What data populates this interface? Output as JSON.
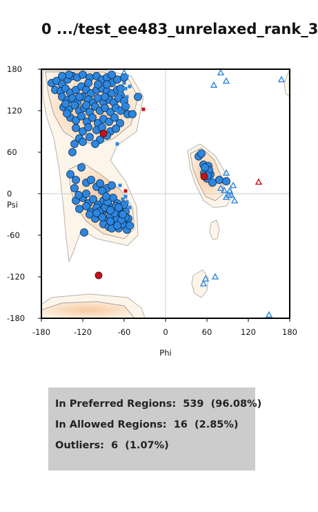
{
  "title": "0 .../test_ee483_unrelaxed_rank_3",
  "stats": {
    "preferred": "In Preferred Regions:  539  (96.08%)",
    "allowed": "In Allowed Regions:  16  (2.85%)",
    "outliers": "Outliers:  6  (1.07%)"
  },
  "chart_data": {
    "type": "scatter",
    "title": "0 .../test_ee483_unrelaxed_rank_3",
    "xlabel": "Phi",
    "ylabel": "Psi",
    "xlim": [
      -180,
      180
    ],
    "ylim": [
      -180,
      180
    ],
    "xticks": [
      "-180",
      "-120",
      "-60",
      "0",
      "60",
      "120",
      "180"
    ],
    "yticks": [
      "180",
      "120",
      "60",
      "0",
      "-60",
      "-120",
      "-180"
    ],
    "colors": {
      "general": "#2e86de",
      "outlier": "#c0141c"
    },
    "series": [
      {
        "marker": "circle",
        "points": [
          [
            -165,
            160
          ],
          [
            -158,
            163
          ],
          [
            -150,
            158
          ],
          [
            -142,
            165
          ],
          [
            -135,
            170
          ],
          [
            -128,
            168
          ],
          [
            -120,
            172
          ],
          [
            -110,
            168
          ],
          [
            -100,
            170
          ],
          [
            -92,
            165
          ],
          [
            -85,
            168
          ],
          [
            -78,
            160
          ],
          [
            -70,
            165
          ],
          [
            -160,
            150
          ],
          [
            -152,
            148
          ],
          [
            -145,
            152
          ],
          [
            -138,
            146
          ],
          [
            -130,
            150
          ],
          [
            -122,
            155
          ],
          [
            -115,
            150
          ],
          [
            -108,
            145
          ],
          [
            -100,
            150
          ],
          [
            -92,
            152
          ],
          [
            -85,
            148
          ],
          [
            -78,
            145
          ],
          [
            -70,
            150
          ],
          [
            -65,
            142
          ],
          [
            -150,
            140
          ],
          [
            -142,
            135
          ],
          [
            -135,
            138
          ],
          [
            -128,
            132
          ],
          [
            -120,
            140
          ],
          [
            -112,
            136
          ],
          [
            -105,
            132
          ],
          [
            -98,
            138
          ],
          [
            -90,
            132
          ],
          [
            -82,
            136
          ],
          [
            -75,
            132
          ],
          [
            -68,
            138
          ],
          [
            -60,
            134
          ],
          [
            -148,
            125
          ],
          [
            -140,
            122
          ],
          [
            -132,
            128
          ],
          [
            -125,
            120
          ],
          [
            -118,
            124
          ],
          [
            -110,
            118
          ],
          [
            -102,
            126
          ],
          [
            -95,
            120
          ],
          [
            -88,
            124
          ],
          [
            -80,
            118
          ],
          [
            -72,
            124
          ],
          [
            -65,
            120
          ],
          [
            -58,
            126
          ],
          [
            -138,
            110
          ],
          [
            -130,
            106
          ],
          [
            -122,
            112
          ],
          [
            -114,
            104
          ],
          [
            -106,
            110
          ],
          [
            -98,
            102
          ],
          [
            -90,
            108
          ],
          [
            -82,
            104
          ],
          [
            -74,
            110
          ],
          [
            -66,
            102
          ],
          [
            -130,
            95
          ],
          [
            -120,
            90
          ],
          [
            -112,
            96
          ],
          [
            -100,
            92
          ],
          [
            -92,
            96
          ],
          [
            -80,
            90
          ],
          [
            -72,
            94
          ],
          [
            -125,
            80
          ],
          [
            -110,
            82
          ],
          [
            -95,
            78
          ],
          [
            -85,
            84
          ],
          [
            -120,
            75
          ],
          [
            -102,
            72
          ],
          [
            -132,
            72
          ],
          [
            -135,
            60
          ],
          [
            -140,
            172
          ],
          [
            -143,
            116
          ],
          [
            -40,
            140
          ],
          [
            -115,
            128
          ],
          [
            -85,
            158
          ],
          [
            -55,
            115
          ],
          [
            -150,
            170
          ],
          [
            -98,
            158
          ],
          [
            -78,
            172
          ],
          [
            -60,
            168
          ],
          [
            -48,
            115
          ],
          [
            -145,
            130
          ],
          [
            -112,
            160
          ],
          [
            -88,
            140
          ],
          [
            -65,
            152
          ],
          [
            -125,
            140
          ],
          [
            -138,
            28
          ],
          [
            -122,
            38
          ],
          [
            -130,
            20
          ],
          [
            -132,
            8
          ],
          [
            -115,
            16
          ],
          [
            -108,
            20
          ],
          [
            -100,
            10
          ],
          [
            -95,
            15
          ],
          [
            -85,
            8
          ],
          [
            -78,
            12
          ],
          [
            -130,
            -10
          ],
          [
            -120,
            -6
          ],
          [
            -112,
            -14
          ],
          [
            -105,
            -8
          ],
          [
            -98,
            -16
          ],
          [
            -90,
            -10
          ],
          [
            -82,
            -18
          ],
          [
            -76,
            -6
          ],
          [
            -70,
            -14
          ],
          [
            -64,
            -20
          ],
          [
            -125,
            -22
          ],
          [
            -115,
            -18
          ],
          [
            -108,
            -26
          ],
          [
            -100,
            -20
          ],
          [
            -92,
            -28
          ],
          [
            -85,
            -22
          ],
          [
            -78,
            -30
          ],
          [
            -72,
            -24
          ],
          [
            -65,
            -32
          ],
          [
            -58,
            -26
          ],
          [
            -110,
            -30
          ],
          [
            -102,
            -36
          ],
          [
            -95,
            -30
          ],
          [
            -88,
            -38
          ],
          [
            -80,
            -32
          ],
          [
            -73,
            -40
          ],
          [
            -66,
            -34
          ],
          [
            -60,
            -42
          ],
          [
            -54,
            -36
          ],
          [
            -90,
            -44
          ],
          [
            -82,
            -48
          ],
          [
            -75,
            -42
          ],
          [
            -68,
            -50
          ],
          [
            -62,
            -44
          ],
          [
            -56,
            -52
          ],
          [
            -52,
            -46
          ],
          [
            -70,
            -36
          ],
          [
            -78,
            -50
          ],
          [
            -65,
            -28
          ],
          [
            -88,
            -20
          ],
          [
            -96,
            -26
          ],
          [
            -72,
            -18
          ],
          [
            -60,
            -16
          ],
          [
            -58,
            -34
          ],
          [
            -84,
            -12
          ],
          [
            -74,
            -28
          ],
          [
            -64,
            -38
          ],
          [
            -92,
            -34
          ],
          [
            -100,
            -28
          ],
          [
            -118,
            -56
          ],
          [
            -115,
            0
          ],
          [
            -126,
            -2
          ],
          [
            -92,
            4
          ],
          [
            -86,
            -4
          ],
          [
            -80,
            -24
          ],
          [
            -68,
            -20
          ],
          [
            -70,
            -46
          ],
          [
            -62,
            -30
          ],
          [
            -80,
            -40
          ],
          [
            48,
            54
          ],
          [
            52,
            58
          ],
          [
            55,
            42
          ],
          [
            58,
            36
          ],
          [
            60,
            30
          ],
          [
            62,
            40
          ],
          [
            56,
            30
          ],
          [
            65,
            28
          ],
          [
            68,
            16
          ],
          [
            78,
            20
          ],
          [
            88,
            18
          ],
          [
            60,
            22
          ],
          [
            63,
            34
          ],
          [
            57,
            38
          ],
          [
            61,
            26
          ]
        ]
      },
      {
        "marker": "square",
        "points": [
          [
            -60,
            160
          ],
          [
            -58,
            152
          ],
          [
            -56,
            140
          ],
          [
            -62,
            132
          ],
          [
            -54,
            126
          ],
          [
            -70,
            120
          ],
          [
            -52,
            155
          ],
          [
            -66,
            145
          ],
          [
            -56,
            170
          ],
          [
            -64,
            118
          ],
          [
            -70,
            72
          ],
          [
            -66,
            12
          ],
          [
            -56,
            -12
          ],
          [
            -62,
            -8
          ],
          [
            -52,
            -20
          ],
          [
            -58,
            -4
          ],
          [
            -60,
            -28
          ]
        ]
      },
      {
        "marker": "triangle",
        "points": [
          [
            -60,
            175
          ],
          [
            80,
            175
          ],
          [
            88,
            163
          ],
          [
            168,
            165
          ],
          [
            70,
            157
          ],
          [
            88,
            30
          ],
          [
            80,
            8
          ],
          [
            85,
            5
          ],
          [
            93,
            4
          ],
          [
            98,
            12
          ],
          [
            92,
            -2
          ],
          [
            88,
            -5
          ],
          [
            95,
            -2
          ],
          [
            100,
            -10
          ],
          [
            68,
            20
          ],
          [
            72,
            -120
          ],
          [
            58,
            -123
          ],
          [
            55,
            -130
          ],
          [
            150,
            -175
          ]
        ]
      },
      {
        "marker": "square",
        "outlier": true,
        "points": [
          [
            -32,
            122
          ],
          [
            -58,
            4
          ]
        ]
      },
      {
        "marker": "triangle",
        "outlier": true,
        "points": [
          [
            135,
            17
          ]
        ]
      },
      {
        "marker": "circle",
        "outlier": true,
        "points": [
          [
            -90,
            87
          ],
          [
            56,
            25
          ],
          [
            -97,
            -118
          ]
        ]
      }
    ]
  }
}
